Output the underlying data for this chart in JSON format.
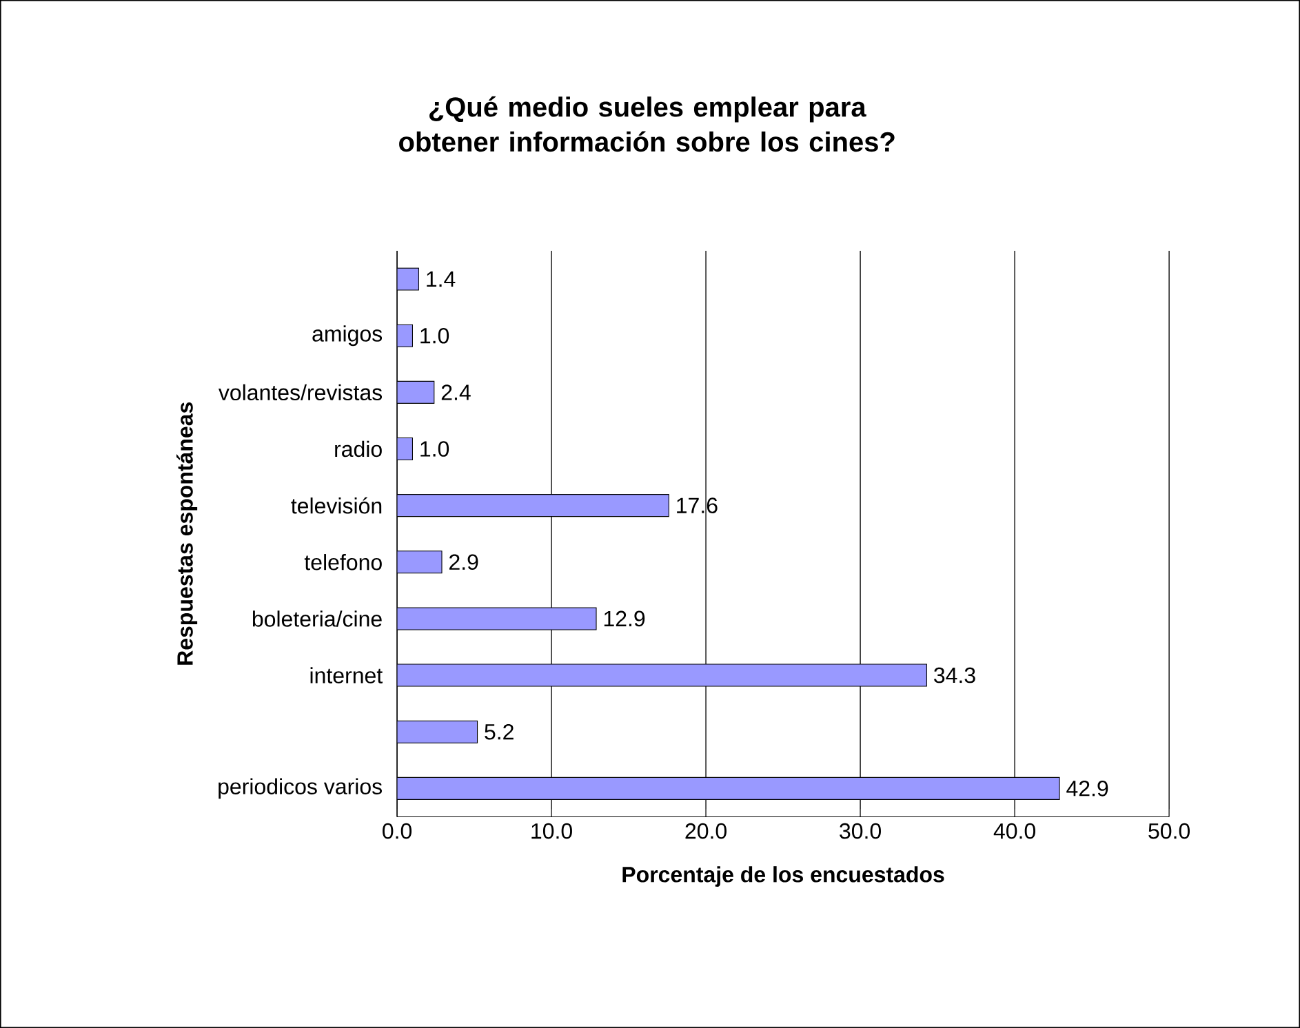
{
  "chart_data": {
    "type": "bar",
    "orientation": "horizontal",
    "title": "¿Qué medio sueles emplear para obtener información sobre los cines?",
    "xlabel": "Porcentaje de los encuestados",
    "ylabel": "Respuestas espontáneas",
    "categories": [
      null,
      "amigos",
      "volantes/revistas",
      "radio",
      "televisión",
      "telefono",
      "boleteria/cine",
      "internet",
      null,
      "periodicos varios"
    ],
    "values": [
      1.4,
      1.0,
      2.4,
      1.0,
      17.6,
      2.9,
      12.9,
      34.3,
      5.2,
      42.9
    ],
    "value_labels": [
      "1.4",
      "1.0",
      "2.4",
      "1.0",
      "17.6",
      "2.9",
      "12.9",
      "34.3",
      "5.2",
      "42.9"
    ],
    "color": "#9999ff",
    "xlim": [
      0,
      50
    ],
    "xticks": [
      {
        "value": 0,
        "label": "0.0"
      },
      {
        "value": 10,
        "label": "10.0"
      },
      {
        "value": 20,
        "label": "20.0"
      },
      {
        "value": 30,
        "label": "30.0"
      },
      {
        "value": 40,
        "label": "40.0"
      },
      {
        "value": 50,
        "label": "50.0"
      }
    ],
    "grid": "x"
  }
}
